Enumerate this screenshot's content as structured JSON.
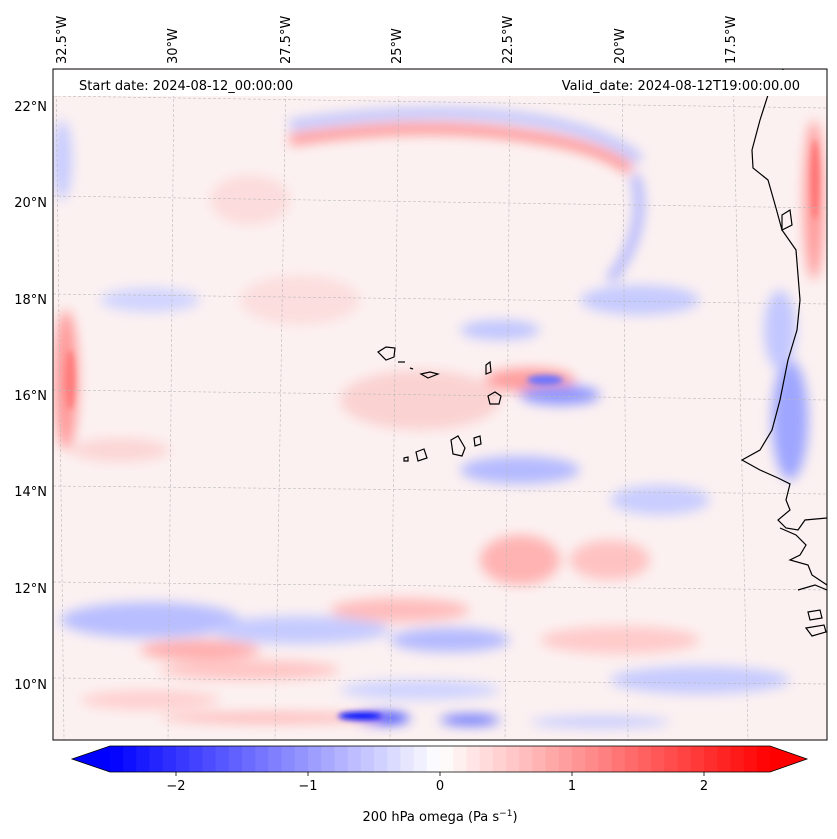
{
  "header": {
    "start_date": "Start date: 2024-08-12_00:00:00",
    "valid_date": "Valid_date: 2024-08-12T19:00:00.00"
  },
  "map": {
    "projection": "lambert-conformal",
    "variable": "200 hPa omega",
    "lon_labels": [
      "32.5°W",
      "30°W",
      "27.5°W",
      "25°W",
      "22.5°W",
      "20°W",
      "17.5°W"
    ],
    "lat_labels": [
      "22°N",
      "20°N",
      "18°N",
      "16°N",
      "14°N",
      "12°N",
      "10°N"
    ],
    "features": [
      "Cape Verde islands",
      "West African coastline"
    ],
    "field_colors": {
      "negative": "#0000ff",
      "zero": "#ffffff",
      "positive": "#ff0000"
    }
  },
  "colorbar": {
    "label": "200 hPa omega (Pa s",
    "label_sup": "−1",
    "label_end": ")",
    "tick_labels": [
      "−2",
      "−1",
      "0",
      "1",
      "2"
    ],
    "tick_values": [
      -2,
      -1,
      0,
      1,
      2
    ],
    "range": [
      -2.5,
      2.5
    ],
    "extend": "both",
    "cmap": "bwr"
  }
}
